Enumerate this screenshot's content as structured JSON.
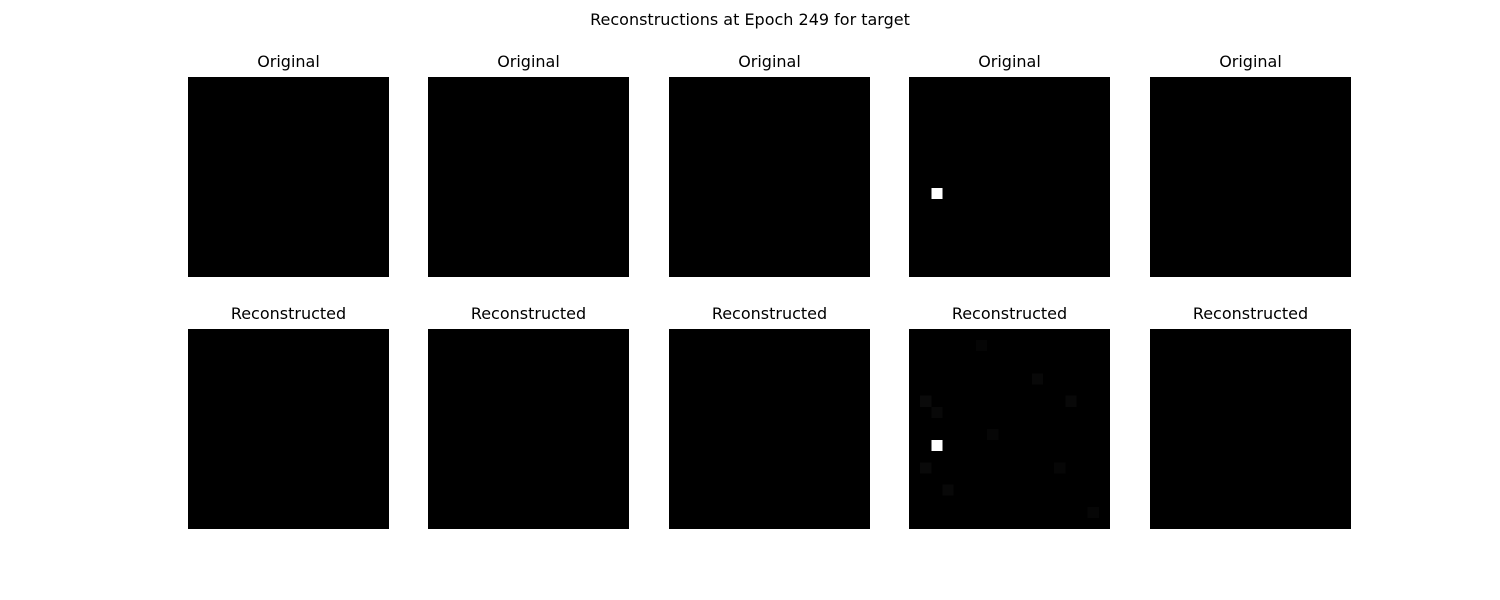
{
  "figure": {
    "title": "Reconstructions at Epoch 249 for target"
  },
  "rows": [
    {
      "kind": "original",
      "panels": [
        {
          "label": "Original",
          "grid": 18,
          "hot_pixels": []
        },
        {
          "label": "Original",
          "grid": 18,
          "hot_pixels": []
        },
        {
          "label": "Original",
          "grid": 18,
          "hot_pixels": []
        },
        {
          "label": "Original",
          "grid": 18,
          "hot_pixels": [
            {
              "col": 2,
              "row": 10,
              "value": 1.0
            }
          ]
        },
        {
          "label": "Original",
          "grid": 18,
          "hot_pixels": []
        }
      ]
    },
    {
      "kind": "reconstructed",
      "panels": [
        {
          "label": "Reconstructed",
          "grid": 18,
          "hot_pixels": []
        },
        {
          "label": "Reconstructed",
          "grid": 18,
          "hot_pixels": []
        },
        {
          "label": "Reconstructed",
          "grid": 18,
          "hot_pixels": []
        },
        {
          "label": "Reconstructed",
          "grid": 18,
          "hot_pixels": [
            {
              "col": 2,
              "row": 10,
              "value": 1.0
            },
            {
              "col": 1,
              "row": 6,
              "value": 0.04
            },
            {
              "col": 2,
              "row": 7,
              "value": 0.03
            },
            {
              "col": 1,
              "row": 12,
              "value": 0.035
            },
            {
              "col": 3,
              "row": 14,
              "value": 0.03
            },
            {
              "col": 7,
              "row": 9,
              "value": 0.025
            },
            {
              "col": 11,
              "row": 4,
              "value": 0.03
            },
            {
              "col": 13,
              "row": 12,
              "value": 0.025
            },
            {
              "col": 14,
              "row": 6,
              "value": 0.03
            },
            {
              "col": 6,
              "row": 1,
              "value": 0.02
            },
            {
              "col": 16,
              "row": 16,
              "value": 0.025
            }
          ]
        },
        {
          "label": "Reconstructed",
          "grid": 18,
          "hot_pixels": []
        }
      ]
    }
  ]
}
